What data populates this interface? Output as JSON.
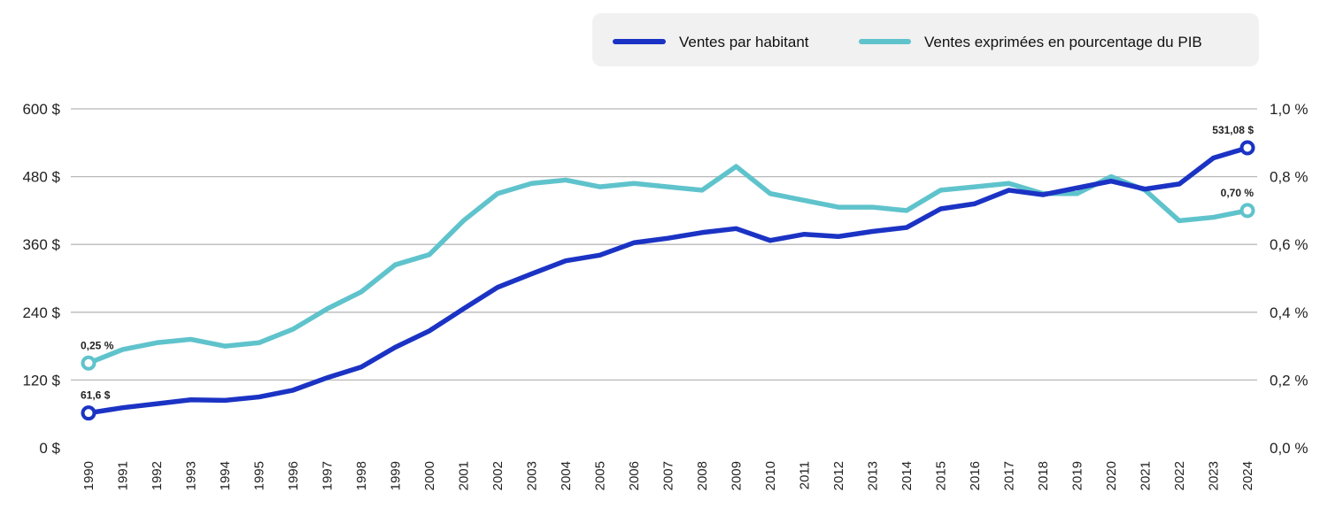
{
  "chart_data": {
    "type": "line",
    "title": "",
    "xlabel": "",
    "ylabel_left": "",
    "ylabel_right": "",
    "x": [
      "1990",
      "1991",
      "1992",
      "1993",
      "1994",
      "1995",
      "1996",
      "1997",
      "1998",
      "1999",
      "2000",
      "2001",
      "2002",
      "2003",
      "2004",
      "2005",
      "2006",
      "2007",
      "2008",
      "2009",
      "2010",
      "2011",
      "2012",
      "2013",
      "2014",
      "2015",
      "2016",
      "2017",
      "2018",
      "2019",
      "2020",
      "2021",
      "2022",
      "2023",
      "2024"
    ],
    "y_left": {
      "ylim": [
        0,
        600
      ],
      "ticks": [
        0,
        120,
        240,
        360,
        480,
        600
      ],
      "tick_labels": [
        "0 $",
        "120 $",
        "240 $",
        "360 $",
        "480 $",
        "600 $"
      ]
    },
    "y_right": {
      "ylim": [
        0,
        1.0
      ],
      "ticks": [
        0,
        0.2,
        0.4,
        0.6,
        0.8,
        1.0
      ],
      "tick_labels": [
        "0,0 %",
        "0,2 %",
        "0,4 %",
        "0,6 %",
        "0,8 %",
        "1,0 %"
      ]
    },
    "grid": true,
    "legend_position": "top-right",
    "series": [
      {
        "name": "Ventes par habitant",
        "axis": "left",
        "color": "#1b33c4",
        "values": [
          61.6,
          71,
          78,
          85,
          84,
          90,
          102,
          124,
          143,
          178,
          207,
          246,
          284,
          308,
          331,
          341,
          363,
          371,
          381,
          388,
          367,
          378,
          374,
          383,
          390,
          423,
          432,
          456,
          448,
          460,
          472,
          458,
          467,
          513,
          531.08
        ]
      },
      {
        "name": "Ventes exprimées en pourcentage du PIB",
        "axis": "right",
        "color": "#5fc3cc",
        "values": [
          0.25,
          0.29,
          0.31,
          0.32,
          0.3,
          0.31,
          0.35,
          0.41,
          0.46,
          0.54,
          0.57,
          0.67,
          0.75,
          0.78,
          0.79,
          0.77,
          0.78,
          0.77,
          0.76,
          0.83,
          0.75,
          0.73,
          0.71,
          0.71,
          0.7,
          0.76,
          0.77,
          0.78,
          0.75,
          0.75,
          0.8,
          0.76,
          0.67,
          0.68,
          0.7
        ]
      }
    ],
    "annotations": [
      {
        "series": 0,
        "index": 0,
        "text": "61,6 $"
      },
      {
        "series": 0,
        "index": 34,
        "text": "531,08 $"
      },
      {
        "series": 1,
        "index": 0,
        "text": "0,25 %"
      },
      {
        "series": 1,
        "index": 34,
        "text": "0,70 %"
      }
    ],
    "legend_bg": "#f1f1f1",
    "grid_color": "#b8b8b8"
  }
}
